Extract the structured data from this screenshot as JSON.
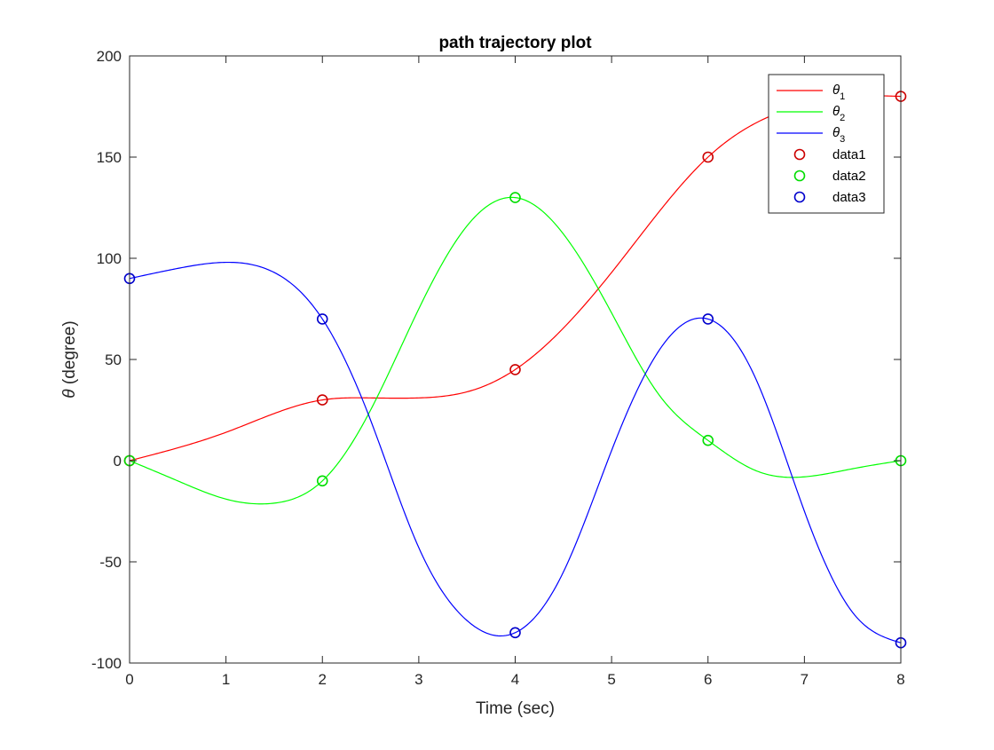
{
  "chart_data": {
    "type": "line",
    "title": "path trajectory plot",
    "xlabel": "Time (sec)",
    "ylabel_symbol": "θ",
    "ylabel_text": " (degree)",
    "xlim": [
      0,
      8
    ],
    "ylim": [
      -100,
      200
    ],
    "xticks": [
      0,
      1,
      2,
      3,
      4,
      5,
      6,
      7,
      8
    ],
    "yticks": [
      -100,
      -50,
      0,
      50,
      100,
      150,
      200
    ],
    "grid": false,
    "legend_position": "top-right",
    "interpolation": "cubic spline through knots",
    "curves": [
      {
        "legend_symbol": "θ",
        "legend_sub": "1",
        "color": "#ff0000",
        "x": [
          0,
          1,
          2,
          2.5,
          3,
          3.5,
          4,
          5,
          6,
          7,
          7.5,
          8
        ],
        "y": [
          0,
          14,
          30,
          31,
          31,
          34,
          45,
          93,
          150,
          176,
          180,
          180
        ]
      },
      {
        "legend_symbol": "θ",
        "legend_sub": "2",
        "color": "#00ff00",
        "x": [
          0,
          0.5,
          1,
          1.5,
          2,
          2.5,
          3,
          3.5,
          4,
          4.5,
          5,
          5.5,
          6,
          6.5,
          7,
          7.5,
          8
        ],
        "y": [
          0,
          -10,
          -19,
          -21,
          -10,
          25,
          75,
          116,
          130,
          112,
          73,
          32,
          10,
          -5,
          -8,
          -4,
          0
        ]
      },
      {
        "legend_symbol": "θ",
        "legend_sub": "3",
        "color": "#0000ff",
        "x": [
          0,
          0.5,
          1,
          1.5,
          2,
          2.5,
          3,
          3.5,
          4,
          4.5,
          5,
          5.5,
          6,
          6.5,
          7,
          7.5,
          8
        ],
        "y": [
          90,
          95,
          98,
          93,
          70,
          20,
          -43,
          -79,
          -85,
          -55,
          5,
          55,
          70,
          40,
          -25,
          -75,
          -90
        ]
      }
    ],
    "points": [
      {
        "name": "data1",
        "color": "#cc0000",
        "x": [
          0,
          2,
          4,
          6,
          8
        ],
        "y": [
          0,
          30,
          45,
          150,
          180
        ]
      },
      {
        "name": "data2",
        "color": "#00dd00",
        "x": [
          0,
          2,
          4,
          6,
          8
        ],
        "y": [
          0,
          -10,
          130,
          10,
          0
        ]
      },
      {
        "name": "data3",
        "color": "#0000cc",
        "x": [
          0,
          2,
          4,
          6,
          8
        ],
        "y": [
          90,
          70,
          -85,
          70,
          -90
        ]
      }
    ]
  }
}
